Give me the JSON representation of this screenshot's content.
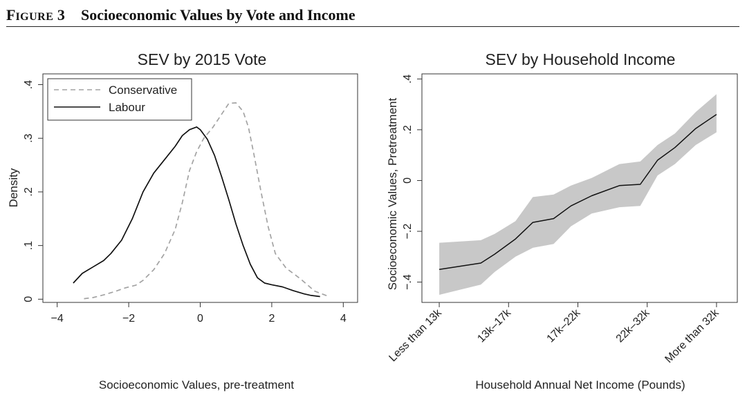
{
  "figure": {
    "label_first": "F",
    "label_rest": "IGURE",
    "label_num": "3",
    "title": "Socioeconomic Values by Vote and Income"
  },
  "chart_data": [
    {
      "type": "line",
      "title": "SEV by 2015 Vote",
      "xlabel": "Socioeconomic Values, pre-treatment",
      "ylabel": "Density",
      "xlim": [
        -4.4,
        4.4
      ],
      "ylim": [
        -0.006,
        0.42
      ],
      "x_ticks": [
        -4,
        -2,
        0,
        2,
        4
      ],
      "x_tick_labels": [
        "−4",
        "−2",
        "0",
        "2",
        "4"
      ],
      "y_ticks": [
        0,
        0.1,
        0.2,
        0.3,
        0.4
      ],
      "y_tick_labels": [
        "0",
        ".1",
        ".2",
        ".3",
        ".4"
      ],
      "grid": false,
      "legend_position": "top-left",
      "series": [
        {
          "name": "Conservative",
          "color": "#a3a3a3",
          "dash": "dashed",
          "x": [
            -3.25,
            -3.0,
            -2.7,
            -2.4,
            -2.1,
            -1.8,
            -1.6,
            -1.3,
            -1.0,
            -0.7,
            -0.5,
            -0.3,
            -0.1,
            0.1,
            0.35,
            0.6,
            0.8,
            1.0,
            1.2,
            1.35,
            1.5,
            1.7,
            1.9,
            2.1,
            2.4,
            2.8,
            3.2,
            3.6
          ],
          "y": [
            0.001,
            0.003,
            0.008,
            0.014,
            0.021,
            0.026,
            0.035,
            0.055,
            0.085,
            0.13,
            0.18,
            0.24,
            0.275,
            0.3,
            0.32,
            0.345,
            0.365,
            0.366,
            0.35,
            0.32,
            0.27,
            0.2,
            0.135,
            0.085,
            0.058,
            0.038,
            0.015,
            0.005
          ]
        },
        {
          "name": "Labour",
          "color": "#111111",
          "dash": "solid",
          "x": [
            -3.55,
            -3.3,
            -3.0,
            -2.7,
            -2.5,
            -2.2,
            -1.9,
            -1.6,
            -1.3,
            -1.0,
            -0.7,
            -0.5,
            -0.3,
            -0.1,
            0.0,
            0.2,
            0.4,
            0.6,
            0.8,
            1.0,
            1.2,
            1.4,
            1.6,
            1.8,
            2.0,
            2.3,
            2.6,
            2.9,
            3.1,
            3.35
          ],
          "y": [
            0.03,
            0.048,
            0.06,
            0.072,
            0.085,
            0.11,
            0.15,
            0.2,
            0.235,
            0.26,
            0.285,
            0.305,
            0.316,
            0.321,
            0.316,
            0.298,
            0.268,
            0.228,
            0.185,
            0.14,
            0.1,
            0.065,
            0.04,
            0.03,
            0.027,
            0.023,
            0.016,
            0.01,
            0.007,
            0.005
          ]
        }
      ]
    },
    {
      "type": "line",
      "title": "SEV by Household Income",
      "xlabel": "Household Annual Net Income (Pounds)",
      "ylabel": "Socioeconomic Values, Pretreatment",
      "categories": [
        "Less than 13k",
        "13k–17k",
        "17k–22k",
        "22k–32k",
        "More than 32k"
      ],
      "xlim": [
        -0.25,
        4.3
      ],
      "ylim": [
        -0.48,
        0.42
      ],
      "y_ticks": [
        -0.4,
        -0.2,
        0,
        0.2,
        0.4
      ],
      "y_tick_labels": [
        "−.4",
        "−.2",
        "0",
        ".2",
        ".4"
      ],
      "grid": false,
      "series": [
        {
          "name": "",
          "color": "#111111",
          "x": [
            0,
            0.6,
            0.8,
            1.1,
            1.35,
            1.65,
            1.9,
            2.2,
            2.6,
            2.9,
            3.15,
            3.4,
            3.7,
            4.0
          ],
          "y": [
            -0.35,
            -0.325,
            -0.29,
            -0.23,
            -0.165,
            -0.15,
            -0.1,
            -0.06,
            -0.02,
            -0.015,
            0.08,
            0.13,
            0.205,
            0.26
          ],
          "ci_lower": [
            -0.45,
            -0.41,
            -0.36,
            -0.3,
            -0.265,
            -0.25,
            -0.18,
            -0.13,
            -0.105,
            -0.1,
            0.02,
            0.065,
            0.14,
            0.19
          ],
          "ci_upper": [
            -0.245,
            -0.235,
            -0.21,
            -0.16,
            -0.065,
            -0.055,
            -0.02,
            0.01,
            0.065,
            0.075,
            0.14,
            0.185,
            0.27,
            0.34
          ]
        }
      ],
      "ci_color": "#c8c8c8"
    }
  ]
}
